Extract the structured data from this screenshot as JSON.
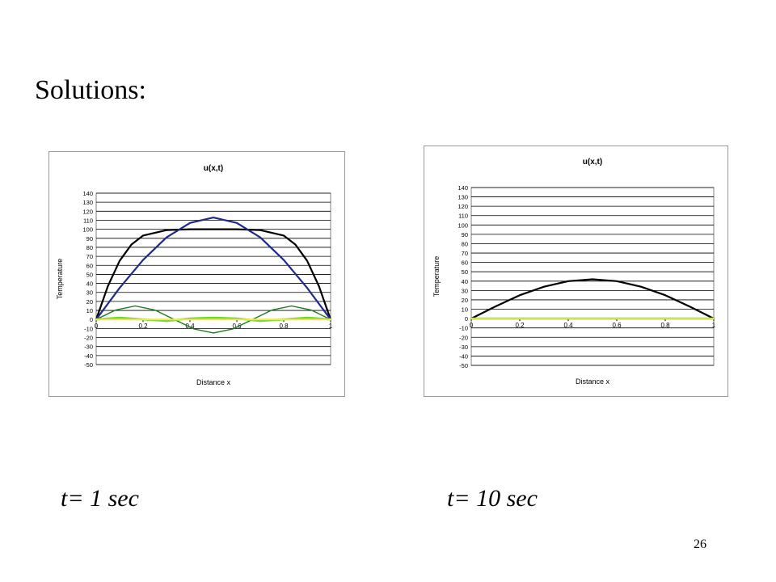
{
  "slide": {
    "title": "Solutions:",
    "page_number": "26"
  },
  "captions": [
    "t= 1 sec",
    "t= 10 sec"
  ],
  "chart_data": [
    {
      "type": "line",
      "title": "u(x,t)",
      "xlabel": "Distance x",
      "ylabel": "Temperature",
      "xlim": [
        0,
        1
      ],
      "ylim": [
        -50,
        140
      ],
      "xticks": [
        0,
        0.2,
        0.4,
        0.6,
        0.8,
        1
      ],
      "yticks": [
        140,
        130,
        120,
        110,
        100,
        90,
        80,
        70,
        60,
        50,
        40,
        30,
        20,
        10,
        0,
        -10,
        -20,
        -30,
        -40,
        -50
      ],
      "grid": true,
      "legend": "none",
      "series": [
        {
          "color": "#000000",
          "width": 2.2,
          "x": [
            0,
            0.05,
            0.1,
            0.15,
            0.2,
            0.3,
            0.4,
            0.5,
            0.6,
            0.7,
            0.8,
            0.85,
            0.9,
            0.95,
            1
          ],
          "y": [
            0,
            37,
            65,
            83,
            93,
            99,
            100,
            100,
            100,
            99,
            93,
            83,
            65,
            37,
            0
          ]
        },
        {
          "color": "#1f2a8a",
          "width": 2.2,
          "x": [
            0,
            0.1,
            0.2,
            0.3,
            0.4,
            0.5,
            0.6,
            0.7,
            0.8,
            0.9,
            1
          ],
          "y": [
            0,
            35,
            66,
            91,
            107,
            113,
            107,
            91,
            66,
            35,
            0
          ]
        },
        {
          "color": "#1e7a1e",
          "width": 1.4,
          "x": [
            0,
            0.083,
            0.167,
            0.25,
            0.333,
            0.417,
            0.5,
            0.583,
            0.667,
            0.75,
            0.833,
            0.917,
            1
          ],
          "y": [
            0,
            10.5,
            15,
            10.5,
            0,
            -10.5,
            -15,
            -10.5,
            0,
            10.5,
            15,
            10.5,
            0
          ]
        },
        {
          "color": "#66dd22",
          "width": 2.6,
          "x": [
            0,
            0.1,
            0.2,
            0.3,
            0.4,
            0.5,
            0.6,
            0.7,
            0.8,
            0.9,
            1
          ],
          "y": [
            0,
            2,
            0,
            -1.5,
            1,
            2,
            1,
            -1.5,
            0,
            2,
            0
          ]
        },
        {
          "color": "#f5e25a",
          "width": 2,
          "x": [
            0,
            1
          ],
          "y": [
            0,
            0
          ]
        }
      ]
    },
    {
      "type": "line",
      "title": "u(x,t)",
      "xlabel": "Distance x",
      "ylabel": "Temperature",
      "xlim": [
        0,
        1
      ],
      "ylim": [
        -50,
        140
      ],
      "xticks": [
        0,
        0.2,
        0.4,
        0.6,
        0.8,
        1
      ],
      "yticks": [
        140,
        130,
        120,
        110,
        100,
        90,
        80,
        70,
        60,
        50,
        40,
        30,
        20,
        10,
        0,
        -10,
        -20,
        -30,
        -40,
        -50
      ],
      "grid": true,
      "legend": "none",
      "series": [
        {
          "color": "#000000",
          "width": 2.2,
          "x": [
            0,
            0.1,
            0.2,
            0.3,
            0.4,
            0.5,
            0.6,
            0.7,
            0.8,
            0.9,
            1
          ],
          "y": [
            0,
            13,
            25,
            34,
            40,
            42,
            40,
            34,
            25,
            13,
            0
          ]
        },
        {
          "color": "#66dd22",
          "width": 2.6,
          "x": [
            0,
            1
          ],
          "y": [
            0,
            0
          ]
        },
        {
          "color": "#f5e25a",
          "width": 1.5,
          "x": [
            0,
            1
          ],
          "y": [
            0,
            0
          ]
        }
      ]
    }
  ]
}
